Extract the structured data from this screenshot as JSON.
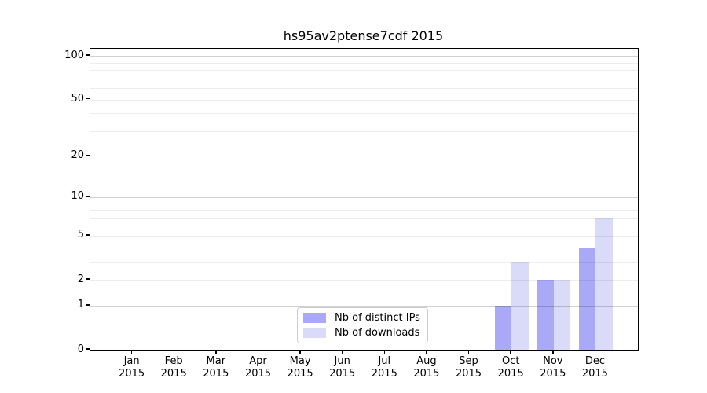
{
  "figure": {
    "background": "#ffffff"
  },
  "chart_data": {
    "type": "bar",
    "title": "hs95av2ptense7cdf 2015",
    "year_label": "2015",
    "categories": [
      "Jan",
      "Feb",
      "Mar",
      "Apr",
      "May",
      "Jun",
      "Jul",
      "Aug",
      "Sep",
      "Oct",
      "Nov",
      "Dec"
    ],
    "series": [
      {
        "name": "Nb of distinct IPs",
        "color": "#a9a9f8",
        "values": [
          0,
          0,
          0,
          0,
          0,
          0,
          0,
          0,
          0,
          1,
          2,
          4
        ]
      },
      {
        "name": "Nb of downloads",
        "color": "#dadaf9",
        "values": [
          0,
          0,
          0,
          0,
          0,
          0,
          0,
          0,
          0,
          3,
          2,
          7
        ]
      }
    ],
    "xlabel": "",
    "ylabel": "",
    "yscale": "log(y+1)",
    "ylim": [
      0,
      112
    ],
    "ytick_labels": [
      0,
      1,
      2,
      5,
      10,
      20,
      50,
      100
    ],
    "minor_grid_values": [
      2,
      3,
      4,
      5,
      6,
      7,
      8,
      9,
      20,
      30,
      40,
      50,
      60,
      70,
      80,
      90
    ],
    "major_grid_values": [
      1,
      10,
      100
    ],
    "grid": "both",
    "legend_position": "lower center"
  }
}
